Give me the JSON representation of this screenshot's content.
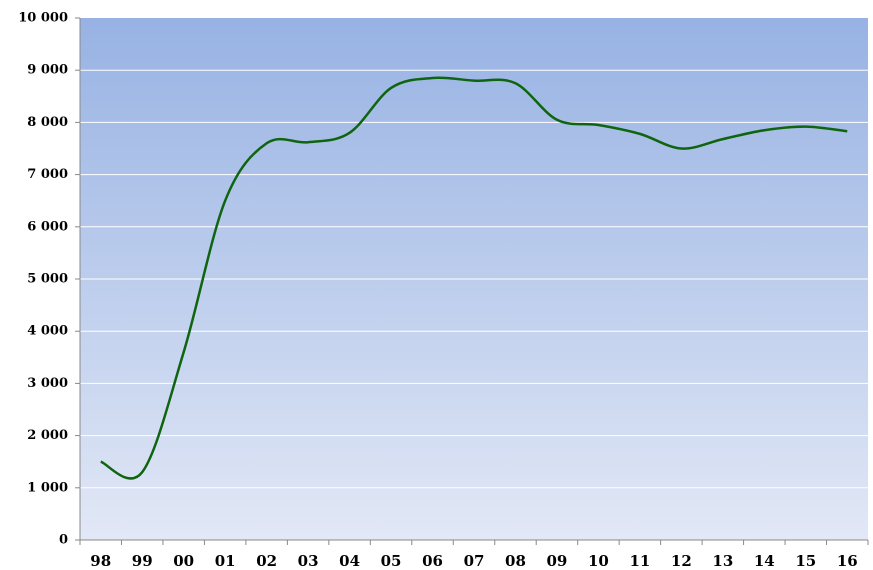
{
  "chart_data": {
    "type": "line",
    "categories": [
      "98",
      "99",
      "00",
      "01",
      "02",
      "03",
      "04",
      "05",
      "06",
      "07",
      "08",
      "09",
      "10",
      "11",
      "12",
      "13",
      "14",
      "15",
      "16"
    ],
    "values": [
      1500,
      1300,
      3600,
      6500,
      7600,
      7620,
      7800,
      8660,
      8850,
      8800,
      8750,
      8050,
      7950,
      7780,
      7500,
      7680,
      7850,
      7920,
      7830
    ],
    "color": "#0f6410",
    "ylim": [
      0,
      10000
    ],
    "yticks": [
      0,
      {
        "value": 1000,
        "label": "1 000"
      },
      {
        "value": 2000,
        "label": "2 000"
      },
      {
        "value": 3000,
        "label": "3 000"
      },
      {
        "value": 4000,
        "label": "4 000"
      },
      {
        "value": 5000,
        "label": "5 000"
      },
      {
        "value": 6000,
        "label": "6 000"
      },
      {
        "value": 7000,
        "label": "7 000"
      },
      {
        "value": 8000,
        "label": "8 000"
      },
      {
        "value": 9000,
        "label": "9 000"
      },
      {
        "value": 10000,
        "label": "10 000"
      }
    ],
    "grid": true
  }
}
